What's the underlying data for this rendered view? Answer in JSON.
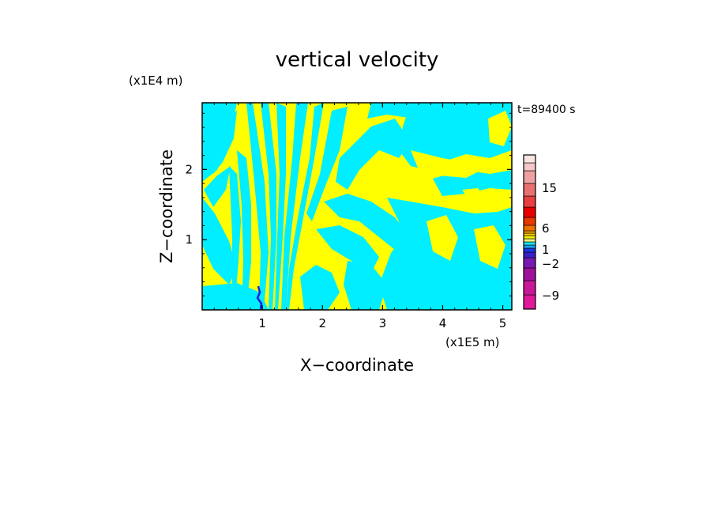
{
  "chart_data": {
    "type": "heatmap",
    "title": "vertical velocity",
    "xlabel": "X−coordinate",
    "ylabel": "Z−coordinate",
    "x_unit": "(x1E5 m)",
    "y_unit": "(x1E4 m)",
    "time_label": "t=89400 s",
    "xlim": [
      0,
      5.15
    ],
    "ylim": [
      0,
      2.95
    ],
    "x_ticks": [
      1,
      2,
      3,
      4,
      5
    ],
    "y_ticks": [
      1,
      2
    ],
    "x_tick_labels": [
      "1",
      "2",
      "3",
      "4",
      "5"
    ],
    "y_tick_labels": [
      "1",
      "2"
    ],
    "grid": false,
    "colorbar": {
      "levels": [
        {
          "color": "#e0189a"
        },
        {
          "color": "#c8189a"
        },
        {
          "color": "#a0109a"
        },
        {
          "color": "#7a18b4"
        },
        {
          "color": "#3a20c8"
        },
        {
          "color": "#1a38e0"
        },
        {
          "color": "#1aa0f0"
        },
        {
          "color": "#1ae8f0"
        },
        {
          "color": "#f0f080"
        },
        {
          "color": "#f0f000"
        },
        {
          "color": "#f8c800"
        },
        {
          "color": "#f8a000"
        },
        {
          "color": "#f07000"
        },
        {
          "color": "#e83800"
        },
        {
          "color": "#e80000"
        },
        {
          "color": "#e84040"
        },
        {
          "color": "#e87070"
        },
        {
          "color": "#f0a0a0"
        },
        {
          "color": "#f4c8c8"
        },
        {
          "color": "#f8e4e0"
        }
      ],
      "tick_labels": [
        "−9",
        "−2",
        "1",
        "6",
        "15"
      ]
    },
    "field_colors": {
      "positive": "#ffff00",
      "negative": "#00eeff",
      "strong_negative": "#1a1ae0"
    }
  }
}
